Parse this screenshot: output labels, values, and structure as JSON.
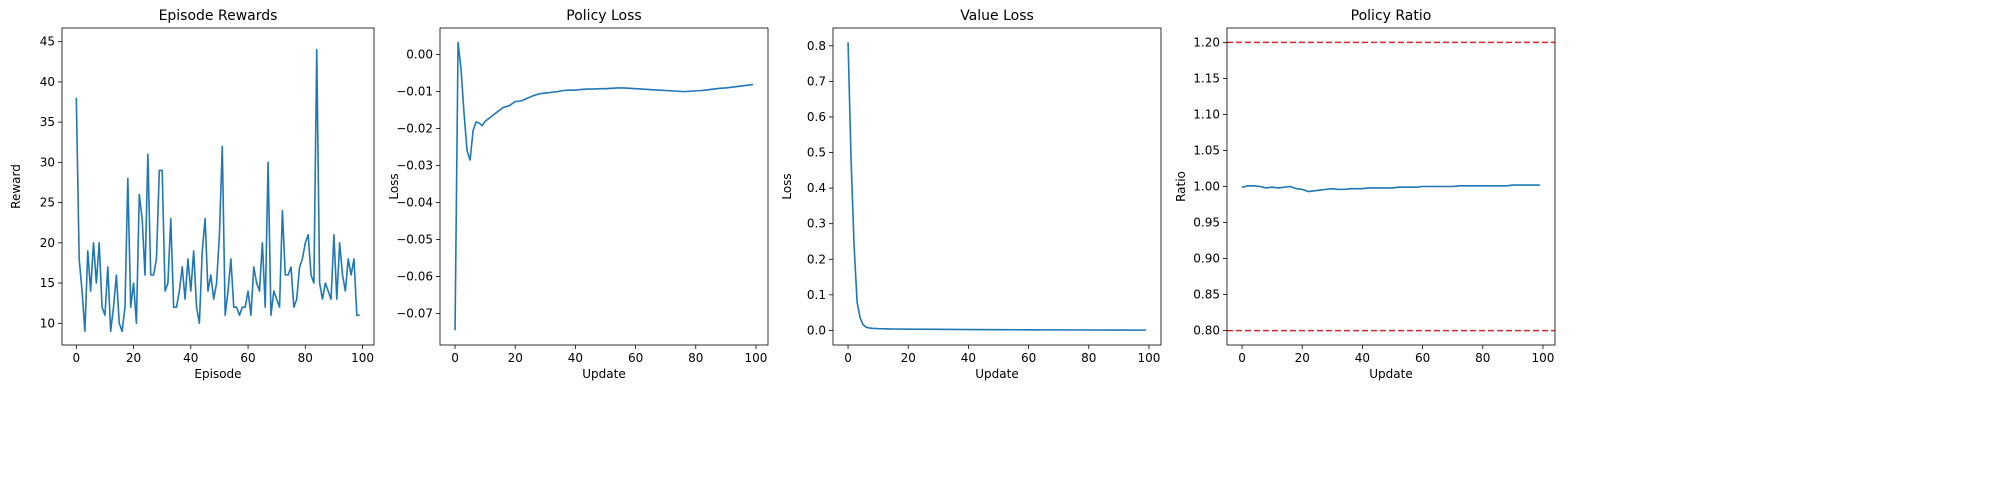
{
  "chart_data": [
    {
      "type": "line",
      "title": "Episode Rewards",
      "xlabel": "Episode",
      "ylabel": "Reward",
      "xlim": [
        -5,
        104
      ],
      "ylim": [
        7.3,
        46.7
      ],
      "xticks": [
        0,
        20,
        40,
        60,
        80,
        100
      ],
      "yticks": [
        10,
        15,
        20,
        25,
        30,
        35,
        40,
        45
      ],
      "ytick_labels": [
        "10",
        "15",
        "20",
        "25",
        "30",
        "35",
        "40",
        "45"
      ],
      "grid": false,
      "series": [
        {
          "color": "#1f77b4",
          "x": [
            0,
            1,
            2,
            3,
            4,
            5,
            6,
            7,
            8,
            9,
            10,
            11,
            12,
            13,
            14,
            15,
            16,
            17,
            18,
            19,
            20,
            21,
            22,
            23,
            24,
            25,
            26,
            27,
            28,
            29,
            30,
            31,
            32,
            33,
            34,
            35,
            36,
            37,
            38,
            39,
            40,
            41,
            42,
            43,
            44,
            45,
            46,
            47,
            48,
            49,
            50,
            51,
            52,
            53,
            54,
            55,
            56,
            57,
            58,
            59,
            60,
            61,
            62,
            63,
            64,
            65,
            66,
            67,
            68,
            69,
            70,
            71,
            72,
            73,
            74,
            75,
            76,
            77,
            78,
            79,
            80,
            81,
            82,
            83,
            84,
            85,
            86,
            87,
            88,
            89,
            90,
            91,
            92,
            93,
            94,
            95,
            96,
            97,
            98,
            99
          ],
          "values": [
            38,
            18,
            14,
            9,
            19,
            14,
            20,
            15,
            20,
            12,
            11,
            17,
            9,
            12,
            16,
            10,
            9,
            12,
            28,
            12,
            15,
            10,
            26,
            23,
            16,
            31,
            16,
            16,
            18,
            29,
            29,
            14,
            15,
            23,
            12,
            12,
            14,
            17,
            13,
            18,
            14,
            19,
            12,
            10,
            19,
            23,
            14,
            16,
            13,
            15,
            21,
            32,
            11,
            14,
            18,
            12,
            12,
            11,
            12,
            12,
            14,
            11,
            17,
            15,
            14,
            20,
            12,
            30,
            11,
            14,
            13,
            12,
            24,
            16,
            16,
            17,
            12,
            13,
            17,
            18,
            20,
            21,
            16,
            15,
            44,
            15,
            13,
            15,
            14,
            13,
            21,
            13,
            20,
            16,
            14,
            18,
            16,
            18,
            11,
            11
          ]
        }
      ]
    },
    {
      "type": "line",
      "title": "Policy Loss",
      "xlabel": "Update",
      "ylabel": "Loss",
      "xlim": [
        -5,
        104
      ],
      "ylim": [
        -0.0785,
        0.0072
      ],
      "xticks": [
        0,
        20,
        40,
        60,
        80,
        100
      ],
      "yticks": [
        0.0,
        -0.01,
        -0.02,
        -0.03,
        -0.04,
        -0.05,
        -0.06,
        -0.07
      ],
      "ytick_labels": [
        "0.00",
        "−0.01",
        "−0.02",
        "−0.03",
        "−0.04",
        "−0.05",
        "−0.06",
        "−0.07"
      ],
      "grid": false,
      "series": [
        {
          "color": "#1f77b4",
          "x": [
            0,
            1,
            2,
            3,
            4,
            5,
            6,
            7,
            8,
            9,
            10,
            12,
            14,
            16,
            18,
            20,
            22,
            24,
            26,
            28,
            30,
            32,
            34,
            36,
            38,
            40,
            42,
            44,
            46,
            48,
            50,
            52,
            54,
            56,
            58,
            60,
            62,
            64,
            66,
            68,
            70,
            72,
            74,
            76,
            78,
            80,
            82,
            84,
            86,
            88,
            90,
            92,
            94,
            96,
            98,
            99
          ],
          "values": [
            -0.0745,
            0.0033,
            -0.004,
            -0.016,
            -0.026,
            -0.0285,
            -0.0205,
            -0.0182,
            -0.0185,
            -0.0192,
            -0.018,
            -0.0168,
            -0.0155,
            -0.0143,
            -0.0138,
            -0.0127,
            -0.0125,
            -0.0118,
            -0.0111,
            -0.0106,
            -0.0104,
            -0.0102,
            -0.01,
            -0.0097,
            -0.0096,
            -0.0096,
            -0.0094,
            -0.0093,
            -0.0093,
            -0.0092,
            -0.0092,
            -0.0091,
            -0.009,
            -0.009,
            -0.0091,
            -0.0092,
            -0.0093,
            -0.0094,
            -0.0095,
            -0.0096,
            -0.0097,
            -0.0098,
            -0.0099,
            -0.01,
            -0.0099,
            -0.0098,
            -0.0097,
            -0.0095,
            -0.0093,
            -0.0091,
            -0.009,
            -0.0088,
            -0.0086,
            -0.0084,
            -0.0082,
            -0.0081
          ]
        }
      ]
    },
    {
      "type": "line",
      "title": "Value Loss",
      "xlabel": "Update",
      "ylabel": "Loss",
      "xlim": [
        -5,
        104
      ],
      "ylim": [
        -0.041,
        0.85
      ],
      "xticks": [
        0,
        20,
        40,
        60,
        80,
        100
      ],
      "yticks": [
        0.0,
        0.1,
        0.2,
        0.3,
        0.4,
        0.5,
        0.6,
        0.7,
        0.8
      ],
      "ytick_labels": [
        "0.0",
        "0.1",
        "0.2",
        "0.3",
        "0.4",
        "0.5",
        "0.6",
        "0.7",
        "0.8"
      ],
      "grid": false,
      "series": [
        {
          "color": "#1f77b4",
          "x": [
            0,
            1,
            2,
            3,
            4,
            5,
            6,
            7,
            8,
            9,
            10,
            12,
            15,
            20,
            30,
            40,
            50,
            60,
            70,
            80,
            90,
            99
          ],
          "values": [
            0.81,
            0.48,
            0.24,
            0.08,
            0.035,
            0.016,
            0.009,
            0.007,
            0.006,
            0.0055,
            0.005,
            0.0045,
            0.004,
            0.0035,
            0.003,
            0.0025,
            0.002,
            0.0018,
            0.0015,
            0.0012,
            0.001,
            0.0008
          ]
        }
      ]
    },
    {
      "type": "line",
      "title": "Policy Ratio",
      "xlabel": "Update",
      "ylabel": "Ratio",
      "xlim": [
        -5,
        104
      ],
      "ylim": [
        0.78,
        1.22
      ],
      "xticks": [
        0,
        20,
        40,
        60,
        80,
        100
      ],
      "yticks": [
        0.8,
        0.85,
        0.9,
        0.95,
        1.0,
        1.05,
        1.1,
        1.15,
        1.2
      ],
      "ytick_labels": [
        "0.80",
        "0.85",
        "0.90",
        "0.95",
        "1.00",
        "1.05",
        "1.10",
        "1.15",
        "1.20"
      ],
      "grid": false,
      "hlines": [
        {
          "y": 1.2,
          "color": "#d62728",
          "style": "dashed"
        },
        {
          "y": 0.8,
          "color": "#d62728",
          "style": "dashed"
        }
      ],
      "series": [
        {
          "color": "#1f77b4",
          "x": [
            0,
            2,
            4,
            6,
            8,
            10,
            12,
            14,
            16,
            18,
            20,
            22,
            24,
            26,
            28,
            30,
            32,
            34,
            36,
            38,
            40,
            42,
            44,
            46,
            48,
            50,
            52,
            54,
            56,
            58,
            60,
            62,
            64,
            66,
            68,
            70,
            72,
            74,
            76,
            78,
            80,
            82,
            84,
            86,
            88,
            90,
            92,
            94,
            96,
            98,
            99
          ],
          "values": [
            0.999,
            1.001,
            1.001,
            1.0,
            0.998,
            0.999,
            0.998,
            0.999,
            1.0,
            0.997,
            0.996,
            0.993,
            0.994,
            0.995,
            0.996,
            0.997,
            0.996,
            0.996,
            0.997,
            0.997,
            0.997,
            0.998,
            0.998,
            0.998,
            0.998,
            0.998,
            0.999,
            0.999,
            0.999,
            0.999,
            1.0,
            1.0,
            1.0,
            1.0,
            1.0,
            1.0,
            1.001,
            1.001,
            1.001,
            1.001,
            1.001,
            1.001,
            1.001,
            1.001,
            1.001,
            1.002,
            1.002,
            1.002,
            1.002,
            1.002,
            1.002
          ]
        }
      ]
    }
  ]
}
